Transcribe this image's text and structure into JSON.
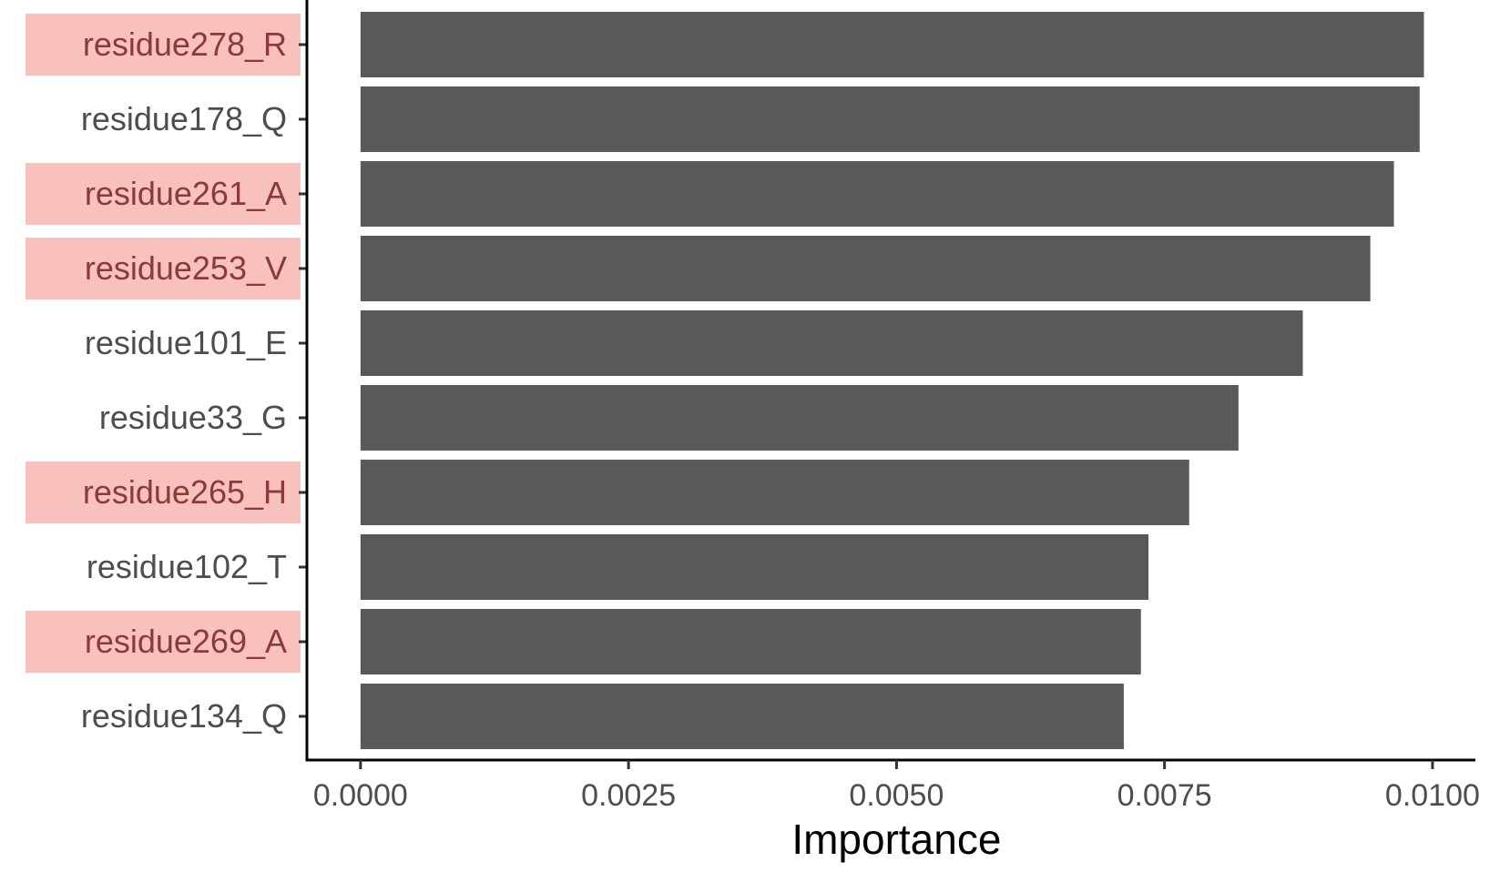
{
  "chart_data": {
    "type": "bar",
    "orientation": "horizontal",
    "categories": [
      "residue278_R",
      "residue178_Q",
      "residue261_A",
      "residue253_V",
      "residue101_E",
      "residue33_G",
      "residue265_H",
      "residue102_T",
      "residue269_A",
      "residue134_Q"
    ],
    "values": [
      0.00992,
      0.00988,
      0.00964,
      0.00942,
      0.00879,
      0.00819,
      0.00773,
      0.00735,
      0.00728,
      0.00712
    ],
    "highlighted": [
      true,
      false,
      true,
      true,
      false,
      false,
      true,
      false,
      true,
      false
    ],
    "title": "",
    "xlabel": "Importance",
    "ylabel": "",
    "xlim": [
      -0.0005,
      0.0104
    ],
    "xticks": [
      0.0,
      0.0025,
      0.005,
      0.0075,
      0.01
    ],
    "xtick_labels": [
      "0.0000",
      "0.0025",
      "0.0050",
      "0.0075",
      "0.0100"
    ],
    "grid": false,
    "legend": "none",
    "colors": {
      "bar": "#595959",
      "highlight_bg": "#f8c1bd",
      "highlight_text": "#8b3a35",
      "label_text": "#4d4d4d",
      "axis": "#000000"
    }
  }
}
